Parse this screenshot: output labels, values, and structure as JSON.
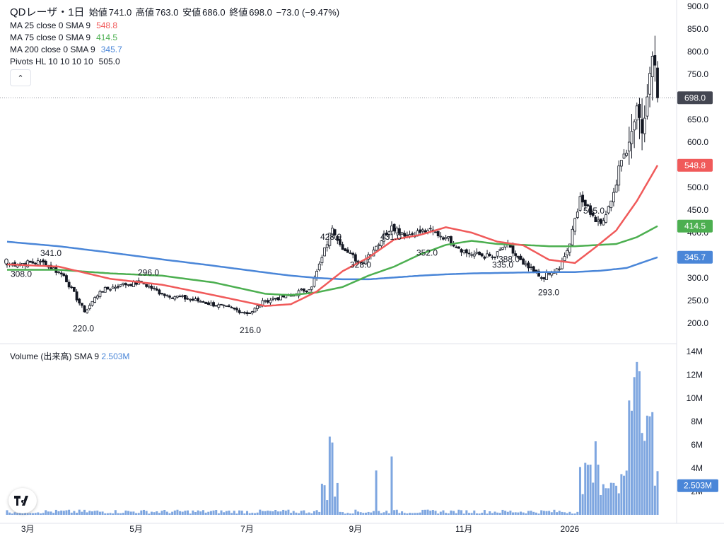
{
  "header": {
    "symbol_title": "QDレーザ・1日",
    "ohlc": {
      "open_label": "始値",
      "open": "741.0",
      "high_label": "高値",
      "high": "763.0",
      "low_label": "安値",
      "low": "686.0",
      "close_label": "終値",
      "close": "698.0",
      "change": "−73.0 (−9.47%)"
    }
  },
  "indicators": [
    {
      "label": "MA 25 close 0 SMA 9",
      "value": "548.8",
      "color": "#f05a5a"
    },
    {
      "label": "MA 75 close 0 SMA 9",
      "value": "414.5",
      "color": "#4caf50"
    },
    {
      "label": "MA 200 close 0 SMA 9",
      "value": "345.7",
      "color": "#4a86d8"
    },
    {
      "label": "Pivots HL 10 10 10 10",
      "value": "505.0",
      "color": "#131722"
    }
  ],
  "collapse_icon": "chevron-up-icon",
  "volume_legend": {
    "label": "Volume (出来高)",
    "sma": "SMA 9",
    "value": "2.503M",
    "color": "#4a86d8"
  },
  "logo": "tradingview-logo",
  "chart_data": {
    "type": "candlestick",
    "price_axis": {
      "ticks": [
        "900.0",
        "850.0",
        "800.0",
        "750.0",
        "700.0",
        "650.0",
        "600.0",
        "550.0",
        "500.0",
        "450.0",
        "400.0",
        "350.0",
        "300.0",
        "250.0",
        "200.0"
      ],
      "ylim": [
        155,
        905
      ]
    },
    "volume_axis": {
      "ticks": [
        "14M",
        "12M",
        "10M",
        "8M",
        "6M",
        "4M",
        "2M"
      ],
      "ylim": [
        0,
        14
      ]
    },
    "x_ticks": [
      "3月",
      "5月",
      "7月",
      "9月",
      "11月",
      "2026"
    ],
    "last_price": {
      "value": "698.0",
      "color": "#434651"
    },
    "ma_badges": [
      {
        "value": "548.8",
        "color": "#f05a5a"
      },
      {
        "value": "414.5",
        "color": "#4caf50"
      },
      {
        "value": "345.7",
        "color": "#4a86d8"
      }
    ],
    "volume_badge": {
      "value": "2.503M",
      "color": "#4a86d8"
    },
    "pivots": [
      {
        "label": "0",
        "type": "high",
        "i": 0
      },
      {
        "label": "341.0",
        "type": "high",
        "i": 14
      },
      {
        "label": "308.0",
        "type": "low",
        "i": 4
      },
      {
        "label": "220.0",
        "type": "low",
        "i": 30
      },
      {
        "label": "296.0",
        "type": "high",
        "i": 52
      },
      {
        "label": "216.0",
        "type": "low",
        "i": 94
      },
      {
        "label": "428.0",
        "type": "high",
        "i": 126
      },
      {
        "label": "328.0",
        "type": "low",
        "i": 137
      },
      {
        "label": "431.0",
        "type": "high",
        "i": 149
      },
      {
        "label": "352.0",
        "type": "low",
        "i": 163
      },
      {
        "label": "388.0",
        "type": "high",
        "i": 193
      },
      {
        "label": "335.0",
        "type": "low",
        "i": 189
      },
      {
        "label": "293.0",
        "type": "low",
        "i": 207
      },
      {
        "label": "505.0",
        "type": "high",
        "i": 224
      }
    ],
    "key_closes": [
      {
        "i": 0,
        "close": 330
      },
      {
        "i": 14,
        "close": 335
      },
      {
        "i": 22,
        "close": 305
      },
      {
        "i": 30,
        "close": 225
      },
      {
        "i": 36,
        "close": 270
      },
      {
        "i": 44,
        "close": 285
      },
      {
        "i": 52,
        "close": 290
      },
      {
        "i": 60,
        "close": 265
      },
      {
        "i": 75,
        "close": 248
      },
      {
        "i": 94,
        "close": 222
      },
      {
        "i": 100,
        "close": 250
      },
      {
        "i": 110,
        "close": 262
      },
      {
        "i": 118,
        "close": 280
      },
      {
        "i": 122,
        "close": 345
      },
      {
        "i": 126,
        "close": 410
      },
      {
        "i": 131,
        "close": 360
      },
      {
        "i": 137,
        "close": 333
      },
      {
        "i": 143,
        "close": 370
      },
      {
        "i": 149,
        "close": 415
      },
      {
        "i": 155,
        "close": 395
      },
      {
        "i": 163,
        "close": 405
      },
      {
        "i": 170,
        "close": 390
      },
      {
        "i": 178,
        "close": 355
      },
      {
        "i": 189,
        "close": 345
      },
      {
        "i": 193,
        "close": 375
      },
      {
        "i": 200,
        "close": 330
      },
      {
        "i": 207,
        "close": 300
      },
      {
        "i": 214,
        "close": 320
      },
      {
        "i": 218,
        "close": 375
      },
      {
        "i": 222,
        "close": 480
      },
      {
        "i": 226,
        "close": 440
      },
      {
        "i": 230,
        "close": 420
      },
      {
        "i": 234,
        "close": 470
      },
      {
        "i": 238,
        "close": 560
      },
      {
        "i": 241,
        "close": 600
      },
      {
        "i": 244,
        "close": 680
      },
      {
        "i": 246,
        "close": 620
      },
      {
        "i": 248,
        "close": 700
      },
      {
        "i": 250,
        "close": 790
      },
      {
        "i": 251,
        "close": 770
      },
      {
        "i": 252,
        "close": 698
      }
    ],
    "ma_points": {
      "ma25": [
        [
          0,
          330
        ],
        [
          20,
          325
        ],
        [
          40,
          298
        ],
        [
          60,
          285
        ],
        [
          80,
          262
        ],
        [
          100,
          238
        ],
        [
          110,
          242
        ],
        [
          120,
          270
        ],
        [
          130,
          315
        ],
        [
          140,
          345
        ],
        [
          150,
          385
        ],
        [
          160,
          395
        ],
        [
          170,
          412
        ],
        [
          180,
          400
        ],
        [
          190,
          380
        ],
        [
          200,
          372
        ],
        [
          210,
          340
        ],
        [
          220,
          333
        ],
        [
          228,
          368
        ],
        [
          236,
          405
        ],
        [
          244,
          470
        ],
        [
          252,
          548.8
        ]
      ],
      "ma75": [
        [
          0,
          318
        ],
        [
          20,
          318
        ],
        [
          40,
          310
        ],
        [
          60,
          305
        ],
        [
          80,
          290
        ],
        [
          100,
          265
        ],
        [
          110,
          262
        ],
        [
          120,
          268
        ],
        [
          130,
          280
        ],
        [
          140,
          305
        ],
        [
          150,
          325
        ],
        [
          160,
          352
        ],
        [
          170,
          373
        ],
        [
          180,
          382
        ],
        [
          190,
          375
        ],
        [
          200,
          373
        ],
        [
          210,
          370
        ],
        [
          220,
          370
        ],
        [
          236,
          375
        ],
        [
          244,
          390
        ],
        [
          252,
          414.5
        ]
      ],
      "ma200": [
        [
          0,
          380
        ],
        [
          20,
          370
        ],
        [
          40,
          356
        ],
        [
          60,
          341
        ],
        [
          80,
          327
        ],
        [
          100,
          312
        ],
        [
          110,
          305
        ],
        [
          120,
          300
        ],
        [
          130,
          297
        ],
        [
          140,
          297
        ],
        [
          150,
          301
        ],
        [
          160,
          305
        ],
        [
          170,
          308
        ],
        [
          180,
          310
        ],
        [
          190,
          311
        ],
        [
          200,
          312
        ],
        [
          210,
          313
        ],
        [
          220,
          313
        ],
        [
          230,
          316
        ],
        [
          240,
          322
        ],
        [
          252,
          345.7
        ]
      ]
    }
  }
}
